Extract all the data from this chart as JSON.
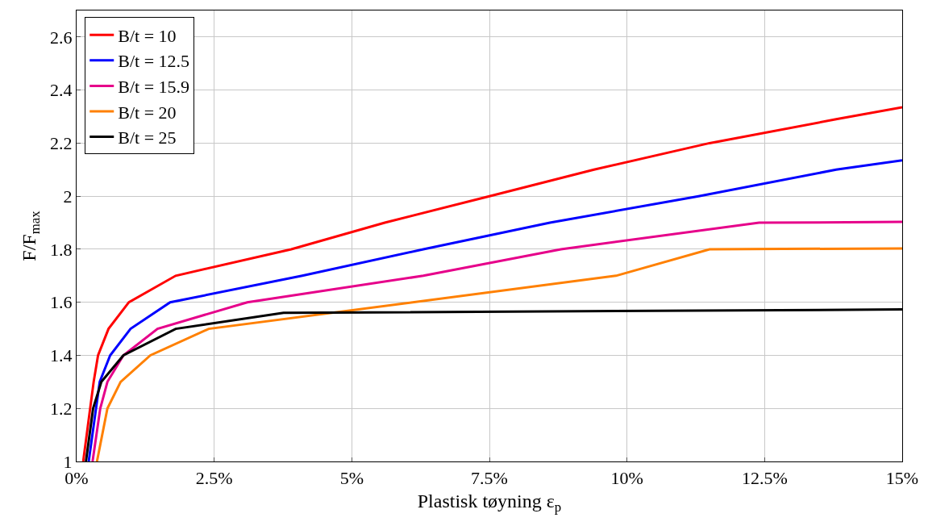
{
  "chart_data": {
    "type": "line",
    "xlabel": "Plastisk tøyning ε$_{p}$",
    "ylabel": "F/F$_{max}$",
    "xlim": [
      0,
      15
    ],
    "ylim": [
      1,
      2.7
    ],
    "xticks": [
      {
        "value": 0,
        "label": "0%"
      },
      {
        "value": 2.5,
        "label": "2.5%"
      },
      {
        "value": 5,
        "label": "5%"
      },
      {
        "value": 7.5,
        "label": "7.5%"
      },
      {
        "value": 10,
        "label": "10%"
      },
      {
        "value": 12.5,
        "label": "12.5%"
      },
      {
        "value": 15,
        "label": "15%"
      }
    ],
    "yticks": [
      1,
      1.2,
      1.4,
      1.6,
      1.8,
      2,
      2.2,
      2.4,
      2.6
    ],
    "grid": true,
    "legend": "top left",
    "marker": "none",
    "line_style": "solid",
    "series": [
      {
        "name": "B/t = 10",
        "color": "#ff0000",
        "x": [
          0.12,
          0.31,
          0.39,
          0.58,
          0.95,
          1.8,
          3.9,
          5.6,
          7.5,
          9.4,
          11.5,
          13.8,
          15
        ],
        "values": [
          1,
          1.3,
          1.4,
          1.5,
          1.6,
          1.7,
          1.8,
          1.9,
          2.0,
          2.1,
          2.2,
          2.29,
          2.335
        ]
      },
      {
        "name": "B/t = 12.5",
        "color": "#0000ff",
        "x": [
          0.22,
          0.42,
          0.61,
          0.98,
          1.7,
          4.1,
          6.3,
          8.6,
          11.3,
          13.8,
          15
        ],
        "values": [
          1,
          1.3,
          1.4,
          1.5,
          1.6,
          1.7,
          1.8,
          1.9,
          2.0,
          2.1,
          2.135
        ]
      },
      {
        "name": "B/t = 15.9",
        "color": "#e6008a",
        "x": [
          0.29,
          0.43,
          0.56,
          0.85,
          1.47,
          3.1,
          6.3,
          8.8,
          12.4,
          15
        ],
        "values": [
          1,
          1.2,
          1.3,
          1.4,
          1.5,
          1.6,
          1.7,
          1.8,
          1.9,
          1.903
        ]
      },
      {
        "name": "B/t = 20",
        "color": "#ff8000",
        "x": [
          0.37,
          0.56,
          0.8,
          1.34,
          2.4,
          9.8,
          11.5,
          15
        ],
        "values": [
          1,
          1.2,
          1.3,
          1.4,
          1.5,
          1.7,
          1.8,
          1.803
        ]
      },
      {
        "name": "B/t = 25",
        "color": "#000000",
        "x": [
          0.17,
          0.3,
          0.45,
          0.85,
          1.8,
          3.76,
          15
        ],
        "values": [
          1,
          1.2,
          1.3,
          1.4,
          1.5,
          1.56,
          1.573
        ]
      }
    ]
  }
}
